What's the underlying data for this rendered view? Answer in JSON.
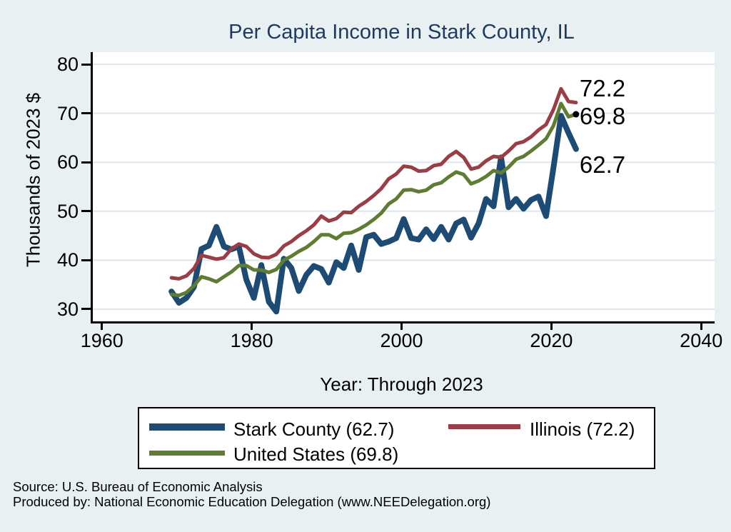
{
  "title": "Per Capita Income in Stark County, IL",
  "colors": {
    "background": "#e8f0f2",
    "plot_background": "#ffffff",
    "gridline": "#dce8ee",
    "axis": "#000000",
    "title_text": "#1f3a60",
    "stark_county": "#1e4b73",
    "illinois": "#9a3d45",
    "united_states": "#5f7c33"
  },
  "chart_data": {
    "type": "line",
    "title": "Per Capita Income in Stark County, IL",
    "xlabel": "Year: Through 2023",
    "ylabel": "Thousands of 2023 $",
    "xlim": [
      1958.5,
      2041.5
    ],
    "ylim": [
      27.5,
      82.5
    ],
    "xticks": [
      1960,
      1980,
      2000,
      2020,
      2040
    ],
    "yticks": [
      30,
      40,
      50,
      60,
      70,
      80
    ],
    "grid": "horizontal-only",
    "legend_position": "bottom",
    "x": [
      1969,
      1970,
      1971,
      1972,
      1973,
      1974,
      1975,
      1976,
      1977,
      1978,
      1979,
      1980,
      1981,
      1982,
      1983,
      1984,
      1985,
      1986,
      1987,
      1988,
      1989,
      1990,
      1991,
      1992,
      1993,
      1994,
      1995,
      1996,
      1997,
      1998,
      1999,
      2000,
      2001,
      2002,
      2003,
      2004,
      2005,
      2006,
      2007,
      2008,
      2009,
      2010,
      2011,
      2012,
      2013,
      2014,
      2015,
      2016,
      2017,
      2018,
      2019,
      2020,
      2021,
      2022,
      2023
    ],
    "series": [
      {
        "name": "Stark County",
        "legend_label": "Stark County (62.7)",
        "end_label": "62.7",
        "end_marker": false,
        "color": "#1e4b73",
        "line_width": 8,
        "values": [
          33.6,
          31.3,
          32.3,
          34.5,
          42.3,
          43.0,
          46.8,
          42.8,
          42.2,
          42.8,
          36.0,
          32.3,
          39.0,
          31.5,
          29.5,
          40.3,
          38.4,
          33.7,
          37.0,
          38.8,
          38.2,
          35.4,
          39.6,
          38.4,
          43.0,
          38.0,
          44.7,
          45.2,
          43.3,
          43.8,
          44.5,
          48.4,
          44.5,
          44.2,
          46.3,
          44.3,
          46.8,
          44.2,
          47.5,
          48.3,
          44.6,
          47.5,
          52.5,
          51.0,
          61.0,
          50.8,
          52.5,
          50.5,
          52.3,
          53.0,
          49.0,
          59.0,
          69.5,
          66.0,
          62.7
        ]
      },
      {
        "name": "Illinois",
        "legend_label": "Illinois (72.2)",
        "end_label": "72.2",
        "end_marker": false,
        "color": "#9a3d45",
        "line_width": 5,
        "values": [
          36.4,
          36.2,
          36.8,
          38.3,
          41.0,
          40.6,
          40.2,
          40.5,
          42.3,
          43.3,
          42.8,
          41.3,
          40.6,
          40.5,
          41.2,
          42.9,
          43.8,
          45.0,
          46.0,
          47.2,
          49.0,
          48.0,
          48.5,
          49.8,
          49.7,
          51.0,
          52.0,
          53.2,
          54.6,
          56.6,
          57.6,
          59.2,
          59.0,
          58.2,
          58.3,
          59.3,
          59.6,
          61.2,
          62.2,
          61.0,
          58.6,
          59.0,
          60.3,
          61.2,
          61.0,
          62.3,
          63.8,
          64.2,
          65.2,
          66.6,
          67.7,
          70.8,
          75.0,
          72.4,
          72.2
        ]
      },
      {
        "name": "United States",
        "legend_label": "United States (69.8)",
        "end_label": "69.8",
        "end_marker": true,
        "color": "#5f7c33",
        "line_width": 5,
        "values": [
          33.0,
          32.8,
          33.4,
          34.8,
          36.6,
          36.2,
          35.6,
          36.6,
          37.6,
          38.9,
          38.9,
          38.0,
          38.0,
          37.5,
          38.1,
          40.0,
          40.8,
          41.8,
          42.6,
          43.8,
          45.2,
          45.2,
          44.4,
          45.5,
          45.6,
          46.3,
          47.2,
          48.3,
          49.6,
          51.5,
          52.5,
          54.3,
          54.4,
          54.0,
          54.3,
          55.4,
          55.8,
          57.0,
          58.0,
          57.5,
          55.6,
          56.2,
          57.1,
          58.3,
          57.8,
          59.0,
          60.6,
          61.2,
          62.3,
          63.5,
          64.8,
          67.5,
          72.0,
          69.3,
          69.8
        ]
      }
    ]
  },
  "footer": {
    "source": "Source: U.S. Bureau of Economic Analysis",
    "produced_by": "Produced by: National Economic Education Delegation (www.NEEDelegation.org)"
  }
}
